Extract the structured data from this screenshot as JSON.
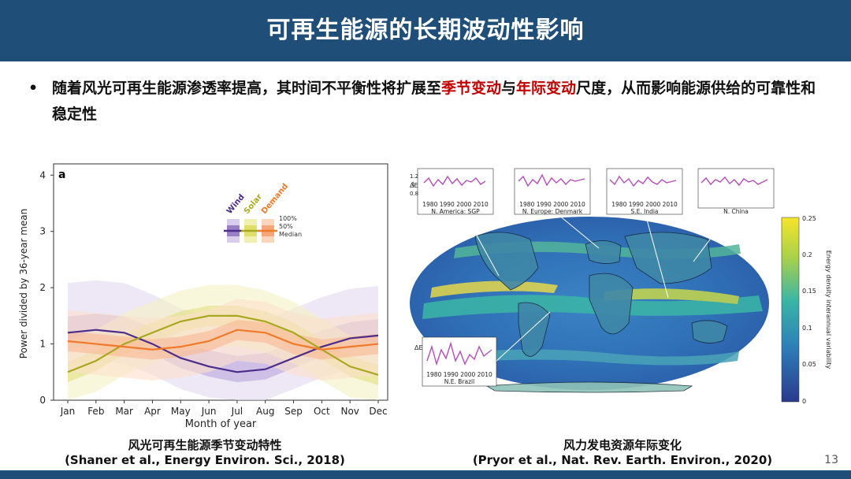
{
  "header": {
    "title": "可再生能源的长期波动性影响"
  },
  "bullet": {
    "marker": "•",
    "part1": "随着风光可再生能源渗透率提高，其时间不平衡性将扩展至",
    "highlight1": "季节变动",
    "part2": "与",
    "highlight2": "年际变动",
    "part3": "尺度，从而影响能源供给的可靠性和稳定性"
  },
  "left_figure": {
    "panel_label": "a",
    "ylabel": "Power divided by 36-year mean",
    "xlabel": "Month of year",
    "legend": {
      "wind": "Wind",
      "solar": "Solar",
      "demand": "Demand",
      "bands": [
        "100%",
        "50%",
        "Median"
      ]
    },
    "caption_line1": "风光可再生能源季节变动特性",
    "caption_line2": "(Shaner et al., Energy Environ. Sci., 2018)"
  },
  "chart_data": [
    {
      "type": "line",
      "x": [
        "Jan",
        "Feb",
        "Mar",
        "Apr",
        "May",
        "Jun",
        "Jul",
        "Aug",
        "Sep",
        "Oct",
        "Nov",
        "Dec"
      ],
      "xlabel": "Month of year",
      "ylabel": "Power divided by 36-year mean",
      "ylim": [
        0,
        4.2
      ],
      "yticks": [
        0,
        1,
        2,
        3,
        4
      ],
      "series": [
        {
          "name": "Wind",
          "color": "#4b2c8a",
          "values": [
            1.2,
            1.25,
            1.2,
            1.0,
            0.75,
            0.6,
            0.5,
            0.55,
            0.75,
            0.95,
            1.1,
            1.15
          ]
        },
        {
          "name": "Solar",
          "color": "#a7a820",
          "values": [
            0.5,
            0.7,
            1.0,
            1.2,
            1.4,
            1.5,
            1.5,
            1.4,
            1.2,
            0.9,
            0.6,
            0.45
          ]
        },
        {
          "name": "Demand",
          "color": "#f07a2a",
          "values": [
            1.05,
            1.0,
            0.95,
            0.9,
            0.95,
            1.05,
            1.25,
            1.2,
            1.0,
            0.9,
            0.95,
            1.0
          ]
        }
      ],
      "grid": false,
      "legend": "top-center"
    }
  ],
  "right_figure": {
    "colorbar_label": "Energy density interannual variability",
    "colorbar_ticks": [
      "0.25",
      "0.2",
      "0.15",
      "0.1",
      "0.05",
      "0"
    ],
    "insets": [
      {
        "name": "N. America: SGP",
        "years": "1980 1990 2000 2010"
      },
      {
        "name": "N. Europe: Denmark",
        "years": "1980 1990 2000 2010"
      },
      {
        "name": "S.E. India",
        "years": "1980 1990 2000 2010"
      },
      {
        "name": "N. China",
        "years": ""
      },
      {
        "name": "N.E. Brazil",
        "years": "1980 1990 2000 2010"
      }
    ],
    "inset_axis": {
      "label": "ΔE",
      "ticks": [
        "1.2",
        "1",
        "0.8"
      ]
    },
    "caption_line1": "风力发电资源年际变化",
    "caption_line2": "(Pryor et al., Nat. Rev. Earth. Environ., 2020)"
  },
  "page_number": "13",
  "colors": {
    "header_bg": "#1f4e79",
    "highlight": "#c00000"
  }
}
